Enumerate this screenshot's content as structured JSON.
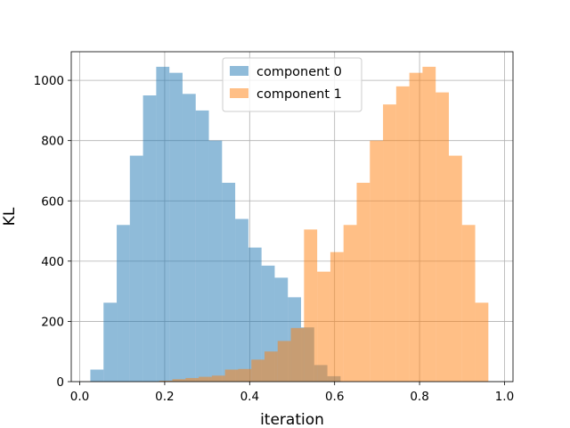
{
  "chart_data": {
    "type": "bar",
    "xlabel": "iteration",
    "ylabel": "KL",
    "xlim": [
      -0.02,
      1.02
    ],
    "ylim": [
      0,
      1095
    ],
    "x_ticks": [
      0.0,
      0.2,
      0.4,
      0.6,
      0.8,
      1.0
    ],
    "x_tick_labels": [
      "0.0",
      "0.2",
      "0.4",
      "0.6",
      "0.8",
      "1.0"
    ],
    "y_ticks": [
      0,
      200,
      400,
      600,
      800,
      1000
    ],
    "y_tick_labels": [
      "0",
      "200",
      "400",
      "600",
      "800",
      "1000"
    ],
    "grid": true,
    "legend_position": "top-center",
    "bin_width": 0.031,
    "series": [
      {
        "name": "component 0",
        "color": "#1f77b4",
        "alpha": 0.5,
        "bin_starts": [
          0.025,
          0.056,
          0.087,
          0.118,
          0.149,
          0.18,
          0.211,
          0.242,
          0.273,
          0.304,
          0.335,
          0.366,
          0.397,
          0.428,
          0.459,
          0.49,
          0.521,
          0.552,
          0.583
        ],
        "values": [
          40,
          262,
          520,
          750,
          950,
          1045,
          1025,
          955,
          900,
          800,
          660,
          540,
          445,
          385,
          345,
          280,
          180,
          55,
          18
        ]
      },
      {
        "name": "component 1",
        "color": "#ff7f0e",
        "alpha": 0.5,
        "bin_starts": [
          0.187,
          0.218,
          0.249,
          0.28,
          0.311,
          0.342,
          0.373,
          0.404,
          0.435,
          0.466,
          0.497,
          0.528,
          0.559,
          0.59,
          0.621,
          0.652,
          0.683,
          0.714,
          0.745,
          0.776,
          0.807,
          0.838,
          0.869,
          0.9,
          0.931
        ],
        "values": [
          3,
          8,
          12,
          16,
          20,
          40,
          42,
          73,
          100,
          135,
          178,
          505,
          365,
          430,
          520,
          660,
          800,
          920,
          980,
          1025,
          1045,
          960,
          750,
          520,
          262
        ]
      }
    ]
  }
}
